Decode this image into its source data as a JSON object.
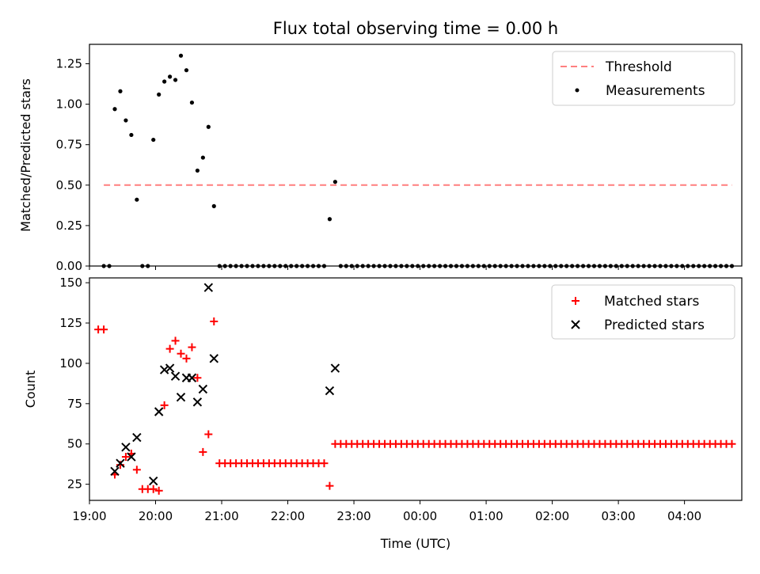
{
  "chart_data": [
    {
      "type": "scatter",
      "title": "Flux total observing time = 0.00 h",
      "xlabel": "",
      "ylabel": "Matched/Predicted stars",
      "xlim": [
        "19:00",
        "04:52"
      ],
      "ylim": [
        0,
        1.37
      ],
      "yticks": [
        "0.00",
        "0.25",
        "0.50",
        "0.75",
        "1.00",
        "1.25"
      ],
      "legend_position": "top-right",
      "threshold": {
        "name": "Threshold",
        "value": 0.5,
        "x_start": "19:13",
        "x_end": "04:43",
        "color": "#ff7f7f",
        "style": "dashed"
      },
      "series": [
        {
          "name": "Measurements",
          "color": "#000000",
          "points": [
            [
              "19:13",
              0
            ],
            [
              "19:18",
              0
            ],
            [
              "19:23",
              0.97
            ],
            [
              "19:28",
              1.08
            ],
            [
              "19:33",
              0.9
            ],
            [
              "19:38",
              0.81
            ],
            [
              "19:43",
              0.41
            ],
            [
              "19:48",
              0
            ],
            [
              "19:53",
              0
            ],
            [
              "19:58",
              0.78
            ],
            [
              "20:03",
              1.06
            ],
            [
              "20:08",
              1.14
            ],
            [
              "20:13",
              1.17
            ],
            [
              "20:18",
              1.15
            ],
            [
              "20:23",
              1.3
            ],
            [
              "20:28",
              1.21
            ],
            [
              "20:33",
              1.01
            ],
            [
              "20:38",
              0.59
            ],
            [
              "20:43",
              0.67
            ],
            [
              "20:48",
              0.86
            ],
            [
              "20:53",
              0.37
            ],
            [
              "20:58",
              0
            ],
            [
              "21:03",
              0
            ],
            [
              "21:08",
              0
            ],
            [
              "21:13",
              0
            ],
            [
              "21:18",
              0
            ],
            [
              "21:23",
              0
            ],
            [
              "21:28",
              0
            ],
            [
              "21:33",
              0
            ],
            [
              "21:38",
              0
            ],
            [
              "21:43",
              0
            ],
            [
              "21:48",
              0
            ],
            [
              "21:53",
              0
            ],
            [
              "21:58",
              0
            ],
            [
              "22:03",
              0
            ],
            [
              "22:08",
              0
            ],
            [
              "22:13",
              0
            ],
            [
              "22:18",
              0
            ],
            [
              "22:23",
              0
            ],
            [
              "22:28",
              0
            ],
            [
              "22:33",
              0
            ],
            [
              "22:38",
              0.29
            ],
            [
              "22:43",
              0.52
            ],
            [
              "22:48",
              0
            ],
            [
              "22:53",
              0
            ],
            [
              "22:58",
              0
            ],
            [
              "23:03",
              0
            ],
            [
              "23:08",
              0
            ],
            [
              "23:13",
              0
            ],
            [
              "23:18",
              0
            ],
            [
              "23:23",
              0
            ],
            [
              "23:28",
              0
            ],
            [
              "23:33",
              0
            ],
            [
              "23:38",
              0
            ],
            [
              "23:43",
              0
            ],
            [
              "23:48",
              0
            ],
            [
              "23:53",
              0
            ],
            [
              "23:58",
              0
            ],
            [
              "00:03",
              0
            ],
            [
              "00:08",
              0
            ],
            [
              "00:13",
              0
            ],
            [
              "00:18",
              0
            ],
            [
              "00:23",
              0
            ],
            [
              "00:28",
              0
            ],
            [
              "00:33",
              0
            ],
            [
              "00:38",
              0
            ],
            [
              "00:43",
              0
            ],
            [
              "00:48",
              0
            ],
            [
              "00:53",
              0
            ],
            [
              "00:58",
              0
            ],
            [
              "01:03",
              0
            ],
            [
              "01:08",
              0
            ],
            [
              "01:13",
              0
            ],
            [
              "01:18",
              0
            ],
            [
              "01:23",
              0
            ],
            [
              "01:28",
              0
            ],
            [
              "01:33",
              0
            ],
            [
              "01:38",
              0
            ],
            [
              "01:43",
              0
            ],
            [
              "01:48",
              0
            ],
            [
              "01:53",
              0
            ],
            [
              "01:58",
              0
            ],
            [
              "02:03",
              0
            ],
            [
              "02:08",
              0
            ],
            [
              "02:13",
              0
            ],
            [
              "02:18",
              0
            ],
            [
              "02:23",
              0
            ],
            [
              "02:28",
              0
            ],
            [
              "02:33",
              0
            ],
            [
              "02:38",
              0
            ],
            [
              "02:43",
              0
            ],
            [
              "02:48",
              0
            ],
            [
              "02:53",
              0
            ],
            [
              "02:58",
              0
            ],
            [
              "03:03",
              0
            ],
            [
              "03:08",
              0
            ],
            [
              "03:13",
              0
            ],
            [
              "03:18",
              0
            ],
            [
              "03:23",
              0
            ],
            [
              "03:28",
              0
            ],
            [
              "03:33",
              0
            ],
            [
              "03:38",
              0
            ],
            [
              "03:43",
              0
            ],
            [
              "03:48",
              0
            ],
            [
              "03:53",
              0
            ],
            [
              "03:58",
              0
            ],
            [
              "04:03",
              0
            ],
            [
              "04:08",
              0
            ],
            [
              "04:13",
              0
            ],
            [
              "04:18",
              0
            ],
            [
              "04:23",
              0
            ],
            [
              "04:28",
              0
            ],
            [
              "04:33",
              0
            ],
            [
              "04:38",
              0
            ],
            [
              "04:43",
              0
            ]
          ]
        }
      ]
    },
    {
      "type": "scatter",
      "title": "",
      "xlabel": "Time (UTC)",
      "ylabel": "Count",
      "xlim": [
        "19:00",
        "04:52"
      ],
      "ylim": [
        15,
        153
      ],
      "yticks": [
        "25",
        "50",
        "75",
        "100",
        "125",
        "150"
      ],
      "xticks": [
        "19:00",
        "20:00",
        "21:00",
        "22:00",
        "23:00",
        "00:00",
        "01:00",
        "02:00",
        "03:00",
        "04:00"
      ],
      "legend_position": "top-right",
      "series": [
        {
          "name": "Matched stars",
          "color": "#ff0000",
          "marker": "plus",
          "points": [
            [
              "19:08",
              121
            ],
            [
              "19:13",
              121
            ],
            [
              "19:23",
              31
            ],
            [
              "19:28",
              37
            ],
            [
              "19:33",
              42
            ],
            [
              "19:38",
              44
            ],
            [
              "19:43",
              34
            ],
            [
              "19:48",
              22
            ],
            [
              "19:53",
              22
            ],
            [
              "19:58",
              22
            ],
            [
              "20:03",
              21
            ],
            [
              "20:08",
              74
            ],
            [
              "20:13",
              109
            ],
            [
              "20:18",
              114
            ],
            [
              "20:23",
              106
            ],
            [
              "20:28",
              103
            ],
            [
              "20:33",
              110
            ],
            [
              "20:38",
              91
            ],
            [
              "20:43",
              45
            ],
            [
              "20:48",
              56
            ],
            [
              "20:53",
              126
            ],
            [
              "20:58",
              38
            ],
            [
              "21:03",
              38
            ],
            [
              "21:08",
              38
            ],
            [
              "21:13",
              38
            ],
            [
              "21:18",
              38
            ],
            [
              "21:23",
              38
            ],
            [
              "21:28",
              38
            ],
            [
              "21:33",
              38
            ],
            [
              "21:38",
              38
            ],
            [
              "21:43",
              38
            ],
            [
              "21:48",
              38
            ],
            [
              "21:53",
              38
            ],
            [
              "21:58",
              38
            ],
            [
              "22:03",
              38
            ],
            [
              "22:08",
              38
            ],
            [
              "22:13",
              38
            ],
            [
              "22:18",
              38
            ],
            [
              "22:23",
              38
            ],
            [
              "22:28",
              38
            ],
            [
              "22:33",
              38
            ],
            [
              "22:38",
              24
            ],
            [
              "22:43",
              50
            ],
            [
              "22:48",
              50
            ],
            [
              "22:53",
              50
            ],
            [
              "22:58",
              50
            ],
            [
              "23:03",
              50
            ],
            [
              "23:08",
              50
            ],
            [
              "23:13",
              50
            ],
            [
              "23:18",
              50
            ],
            [
              "23:23",
              50
            ],
            [
              "23:28",
              50
            ],
            [
              "23:33",
              50
            ],
            [
              "23:38",
              50
            ],
            [
              "23:43",
              50
            ],
            [
              "23:48",
              50
            ],
            [
              "23:53",
              50
            ],
            [
              "23:58",
              50
            ],
            [
              "00:03",
              50
            ],
            [
              "00:08",
              50
            ],
            [
              "00:13",
              50
            ],
            [
              "00:18",
              50
            ],
            [
              "00:23",
              50
            ],
            [
              "00:28",
              50
            ],
            [
              "00:33",
              50
            ],
            [
              "00:38",
              50
            ],
            [
              "00:43",
              50
            ],
            [
              "00:48",
              50
            ],
            [
              "00:53",
              50
            ],
            [
              "00:58",
              50
            ],
            [
              "01:03",
              50
            ],
            [
              "01:08",
              50
            ],
            [
              "01:13",
              50
            ],
            [
              "01:18",
              50
            ],
            [
              "01:23",
              50
            ],
            [
              "01:28",
              50
            ],
            [
              "01:33",
              50
            ],
            [
              "01:38",
              50
            ],
            [
              "01:43",
              50
            ],
            [
              "01:48",
              50
            ],
            [
              "01:53",
              50
            ],
            [
              "01:58",
              50
            ],
            [
              "02:03",
              50
            ],
            [
              "02:08",
              50
            ],
            [
              "02:13",
              50
            ],
            [
              "02:18",
              50
            ],
            [
              "02:23",
              50
            ],
            [
              "02:28",
              50
            ],
            [
              "02:33",
              50
            ],
            [
              "02:38",
              50
            ],
            [
              "02:43",
              50
            ],
            [
              "02:48",
              50
            ],
            [
              "02:53",
              50
            ],
            [
              "02:58",
              50
            ],
            [
              "03:03",
              50
            ],
            [
              "03:08",
              50
            ],
            [
              "03:13",
              50
            ],
            [
              "03:18",
              50
            ],
            [
              "03:23",
              50
            ],
            [
              "03:28",
              50
            ],
            [
              "03:33",
              50
            ],
            [
              "03:38",
              50
            ],
            [
              "03:43",
              50
            ],
            [
              "03:48",
              50
            ],
            [
              "03:53",
              50
            ],
            [
              "03:58",
              50
            ],
            [
              "04:03",
              50
            ],
            [
              "04:08",
              50
            ],
            [
              "04:13",
              50
            ],
            [
              "04:18",
              50
            ],
            [
              "04:23",
              50
            ],
            [
              "04:28",
              50
            ],
            [
              "04:33",
              50
            ],
            [
              "04:38",
              50
            ],
            [
              "04:43",
              50
            ]
          ]
        },
        {
          "name": "Predicted stars",
          "color": "#000000",
          "marker": "x",
          "points": [
            [
              "19:23",
              33
            ],
            [
              "19:28",
              38
            ],
            [
              "19:33",
              48
            ],
            [
              "19:38",
              42
            ],
            [
              "19:43",
              54
            ],
            [
              "19:58",
              27
            ],
            [
              "20:03",
              70
            ],
            [
              "20:08",
              96
            ],
            [
              "20:13",
              97
            ],
            [
              "20:18",
              92
            ],
            [
              "20:23",
              79
            ],
            [
              "20:28",
              91
            ],
            [
              "20:33",
              91
            ],
            [
              "20:38",
              76
            ],
            [
              "20:43",
              84
            ],
            [
              "20:48",
              147
            ],
            [
              "20:53",
              103
            ],
            [
              "22:38",
              83
            ],
            [
              "22:43",
              97
            ]
          ]
        }
      ]
    }
  ]
}
